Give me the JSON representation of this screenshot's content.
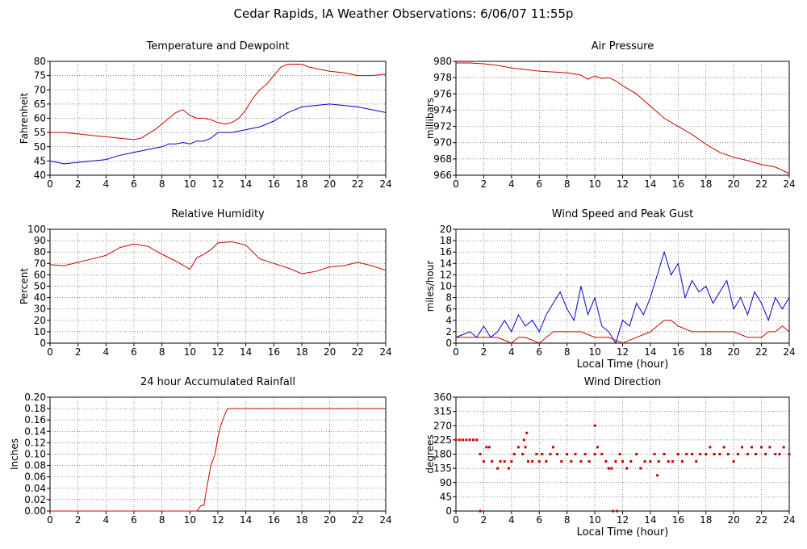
{
  "title": "Cedar Rapids, IA Weather Observations: 6/06/07 11:55p",
  "colors": {
    "red": "#cc0000",
    "blue": "#0000cc",
    "grid": "#666666"
  },
  "chart_data": [
    {
      "id": "temp",
      "type": "line",
      "title": "Temperature and Dewpoint",
      "xlabel": "",
      "ylabel": "Fahrenheit",
      "xlim": [
        0,
        24
      ],
      "ylim": [
        40,
        80
      ],
      "x_ticks": [
        0,
        2,
        4,
        6,
        8,
        10,
        12,
        14,
        16,
        18,
        20,
        22,
        24
      ],
      "y_ticks": [
        40,
        45,
        50,
        55,
        60,
        65,
        70,
        75,
        80
      ],
      "grid": true,
      "series": [
        {
          "color": "#cc0000",
          "x": [
            0,
            1,
            2,
            3,
            4,
            5,
            6,
            6.5,
            7,
            7.5,
            8,
            8.5,
            9,
            9.5,
            10,
            10.5,
            11,
            11.5,
            12,
            12.5,
            13,
            13.5,
            14,
            14.5,
            15,
            15.5,
            16,
            16.5,
            17,
            17.5,
            18,
            18.5,
            19,
            19.5,
            20,
            21,
            22,
            23,
            24
          ],
          "y": [
            55,
            55,
            54.5,
            54,
            53.5,
            53,
            52.5,
            53,
            54.5,
            56,
            58,
            60,
            62,
            63,
            61,
            60,
            60,
            59.5,
            58.5,
            58,
            58.5,
            60,
            63,
            67,
            70,
            72,
            75,
            78,
            79,
            79,
            79,
            78,
            77.5,
            77,
            76.5,
            76,
            75,
            75,
            75.5
          ]
        },
        {
          "color": "#0000cc",
          "x": [
            0,
            1,
            2,
            3,
            4,
            5,
            6,
            7,
            8,
            8.5,
            9,
            9.5,
            10,
            10.5,
            11,
            11.5,
            12,
            13,
            14,
            15,
            16,
            17,
            18,
            19,
            20,
            21,
            22,
            23,
            24
          ],
          "y": [
            45,
            44,
            44.5,
            45,
            45.5,
            47,
            48,
            49,
            50,
            51,
            51,
            51.5,
            51,
            52,
            52,
            53,
            55,
            55,
            56,
            57,
            59,
            62,
            64,
            64.5,
            65,
            64.5,
            64,
            63,
            62
          ]
        }
      ]
    },
    {
      "id": "pressure",
      "type": "line",
      "title": "Air Pressure",
      "xlabel": "",
      "ylabel": "millibars",
      "xlim": [
        0,
        24
      ],
      "ylim": [
        966,
        980
      ],
      "x_ticks": [
        0,
        2,
        4,
        6,
        8,
        10,
        12,
        14,
        16,
        18,
        20,
        22,
        24
      ],
      "y_ticks": [
        966,
        968,
        970,
        972,
        974,
        976,
        978,
        980
      ],
      "grid": true,
      "series": [
        {
          "color": "#cc0000",
          "x": [
            0,
            1,
            2,
            3,
            4,
            5,
            6,
            7,
            8,
            9,
            9.5,
            10,
            10.5,
            11,
            11.5,
            12,
            13,
            14,
            15,
            16,
            17,
            18,
            19,
            20,
            21,
            22,
            23,
            24
          ],
          "y": [
            979.8,
            979.8,
            979.7,
            979.5,
            979.2,
            979,
            978.8,
            978.7,
            978.6,
            978.3,
            977.8,
            978.2,
            977.9,
            978,
            977.6,
            977,
            976,
            974.5,
            973,
            972,
            971,
            969.8,
            968.8,
            968.2,
            967.8,
            967.3,
            967,
            966.2
          ]
        }
      ]
    },
    {
      "id": "humidity",
      "type": "line",
      "title": "Relative Humidity",
      "xlabel": "",
      "ylabel": "Percent",
      "xlim": [
        0,
        24
      ],
      "ylim": [
        0,
        100
      ],
      "x_ticks": [
        0,
        2,
        4,
        6,
        8,
        10,
        12,
        14,
        16,
        18,
        20,
        22,
        24
      ],
      "y_ticks": [
        0,
        10,
        20,
        30,
        40,
        50,
        60,
        70,
        80,
        90,
        100
      ],
      "grid": true,
      "series": [
        {
          "color": "#cc0000",
          "x": [
            0,
            1,
            2,
            3,
            4,
            5,
            6,
            7,
            8,
            9,
            10,
            10.5,
            11,
            11.5,
            12,
            13,
            14,
            15,
            16,
            17,
            18,
            19,
            20,
            21,
            22,
            23,
            24
          ],
          "y": [
            69,
            68,
            71,
            74,
            77,
            84,
            87,
            85,
            78,
            72,
            65,
            75,
            78,
            82,
            88,
            89,
            86,
            74,
            70,
            66,
            61,
            63,
            67,
            68,
            71,
            68,
            64
          ]
        }
      ]
    },
    {
      "id": "wind",
      "type": "line",
      "title": "Wind Speed and Peak Gust",
      "xlabel": "Local Time (hour)",
      "ylabel": "miles/hour",
      "xlim": [
        0,
        24
      ],
      "ylim": [
        0,
        20
      ],
      "x_ticks": [
        0,
        2,
        4,
        6,
        8,
        10,
        12,
        14,
        16,
        18,
        20,
        22,
        24
      ],
      "y_ticks": [
        0,
        2,
        4,
        6,
        8,
        10,
        12,
        14,
        16,
        18,
        20
      ],
      "grid": true,
      "series": [
        {
          "color": "#0000cc",
          "x": [
            0,
            0.5,
            1,
            1.5,
            2,
            2.5,
            3,
            3.5,
            4,
            4.5,
            5,
            5.5,
            6,
            6.5,
            7,
            7.5,
            8,
            8.5,
            9,
            9.5,
            10,
            10.5,
            11,
            11.5,
            12,
            12.5,
            13,
            13.5,
            14,
            14.5,
            15,
            15.5,
            16,
            16.5,
            17,
            17.5,
            18,
            18.5,
            19,
            19.5,
            20,
            20.5,
            21,
            21.5,
            22,
            22.5,
            23,
            23.5,
            24
          ],
          "y": [
            1,
            1.5,
            2,
            1,
            3,
            1,
            2,
            4,
            2,
            5,
            3,
            4,
            2,
            5,
            7,
            9,
            6,
            4,
            10,
            5,
            8,
            3,
            2,
            0,
            4,
            3,
            7,
            5,
            8,
            12,
            16,
            12,
            14,
            8,
            11,
            9,
            10,
            7,
            9,
            11,
            6,
            8,
            5,
            9,
            7,
            4,
            8,
            6,
            8
          ]
        },
        {
          "color": "#cc0000",
          "x": [
            0,
            1,
            2,
            3,
            4,
            4.5,
            5,
            6,
            7,
            8,
            9,
            10,
            11,
            12,
            13,
            14,
            14.5,
            15,
            15.5,
            16,
            17,
            18,
            19,
            20,
            21,
            22,
            22.5,
            23,
            23.5,
            24
          ],
          "y": [
            1,
            1,
            1,
            1,
            0,
            1,
            1,
            0,
            2,
            2,
            2,
            1,
            1,
            0,
            1,
            2,
            3,
            4,
            4,
            3,
            2,
            2,
            2,
            2,
            1,
            1,
            2,
            2,
            3,
            2
          ]
        }
      ]
    },
    {
      "id": "rain",
      "type": "line",
      "title": "24 hour Accumulated Rainfall",
      "xlabel": "",
      "ylabel": "Inches",
      "xlim": [
        0,
        24
      ],
      "ylim": [
        0,
        0.2
      ],
      "x_ticks": [
        0,
        2,
        4,
        6,
        8,
        10,
        12,
        14,
        16,
        18,
        20,
        22,
        24
      ],
      "y_ticks": [
        0,
        0.02,
        0.04,
        0.06,
        0.08,
        0.1,
        0.12,
        0.14,
        0.16,
        0.18,
        0.2
      ],
      "y_tick_labels": [
        "0.00",
        "0.02",
        "0.04",
        "0.06",
        "0.08",
        "0.10",
        "0.12",
        "0.14",
        "0.16",
        "0.18",
        "0.20"
      ],
      "grid": true,
      "series": [
        {
          "color": "#cc0000",
          "x": [
            0,
            10.5,
            10.8,
            11,
            11.2,
            11.5,
            11.8,
            12,
            12.2,
            12.5,
            12.7,
            24
          ],
          "y": [
            0,
            0,
            0.01,
            0.01,
            0.04,
            0.08,
            0.1,
            0.13,
            0.15,
            0.17,
            0.18,
            0.18
          ]
        }
      ]
    },
    {
      "id": "direction",
      "type": "scatter",
      "title": "Wind Direction",
      "xlabel": "Local Time (hour)",
      "ylabel": "degrees",
      "xlim": [
        0,
        24
      ],
      "ylim": [
        0,
        360
      ],
      "x_ticks": [
        0,
        2,
        4,
        6,
        8,
        10,
        12,
        14,
        16,
        18,
        20,
        22,
        24
      ],
      "y_ticks": [
        0,
        45,
        90,
        135,
        180,
        225,
        270,
        315,
        360
      ],
      "grid": true,
      "series": [
        {
          "color": "#cc0000",
          "x": [
            0,
            0.25,
            0.5,
            0.75,
            1,
            1.25,
            1.5,
            1.75,
            2,
            2.2,
            2.4,
            2.6,
            3,
            3.2,
            3.5,
            3.8,
            4,
            4.2,
            4.5,
            4.8,
            5,
            5.2,
            5.5,
            5.8,
            6,
            6.2,
            6.5,
            6.8,
            7,
            7.3,
            7.6,
            8,
            8.3,
            8.6,
            9,
            9.3,
            9.6,
            10,
            10.2,
            10.5,
            10.8,
            11,
            11.2,
            11.5,
            11.8,
            12,
            12.3,
            12.6,
            13,
            13.3,
            13.6,
            14,
            14.3,
            14.6,
            15,
            15.3,
            15.6,
            16,
            16.3,
            16.6,
            17,
            17.3,
            17.6,
            18,
            18.3,
            18.6,
            19,
            19.3,
            19.6,
            20,
            20.3,
            20.6,
            21,
            21.3,
            21.6,
            22,
            22.3,
            22.6,
            23,
            23.3,
            23.6,
            24
          ],
          "y": [
            225,
            225,
            225,
            225,
            225,
            225,
            225,
            180,
            157,
            202,
            202,
            157,
            135,
            157,
            157,
            135,
            157,
            180,
            202,
            180,
            202,
            157,
            157,
            180,
            157,
            180,
            157,
            180,
            202,
            180,
            157,
            180,
            157,
            180,
            157,
            180,
            157,
            180,
            202,
            180,
            157,
            135,
            135,
            157,
            180,
            157,
            135,
            157,
            180,
            135,
            157,
            157,
            180,
            157,
            180,
            157,
            157,
            180,
            157,
            180,
            180,
            157,
            180,
            180,
            202,
            180,
            180,
            202,
            180,
            157,
            180,
            202,
            180,
            202,
            180,
            202,
            180,
            202,
            180,
            180,
            202,
            180
          ],
          "extra_x": [
            1.75,
            10,
            11.3,
            11.6,
            4.9,
            5.1,
            14.5
          ],
          "extra_y": [
            0,
            270,
            0,
            0,
            225,
            247,
            113
          ]
        }
      ]
    }
  ]
}
